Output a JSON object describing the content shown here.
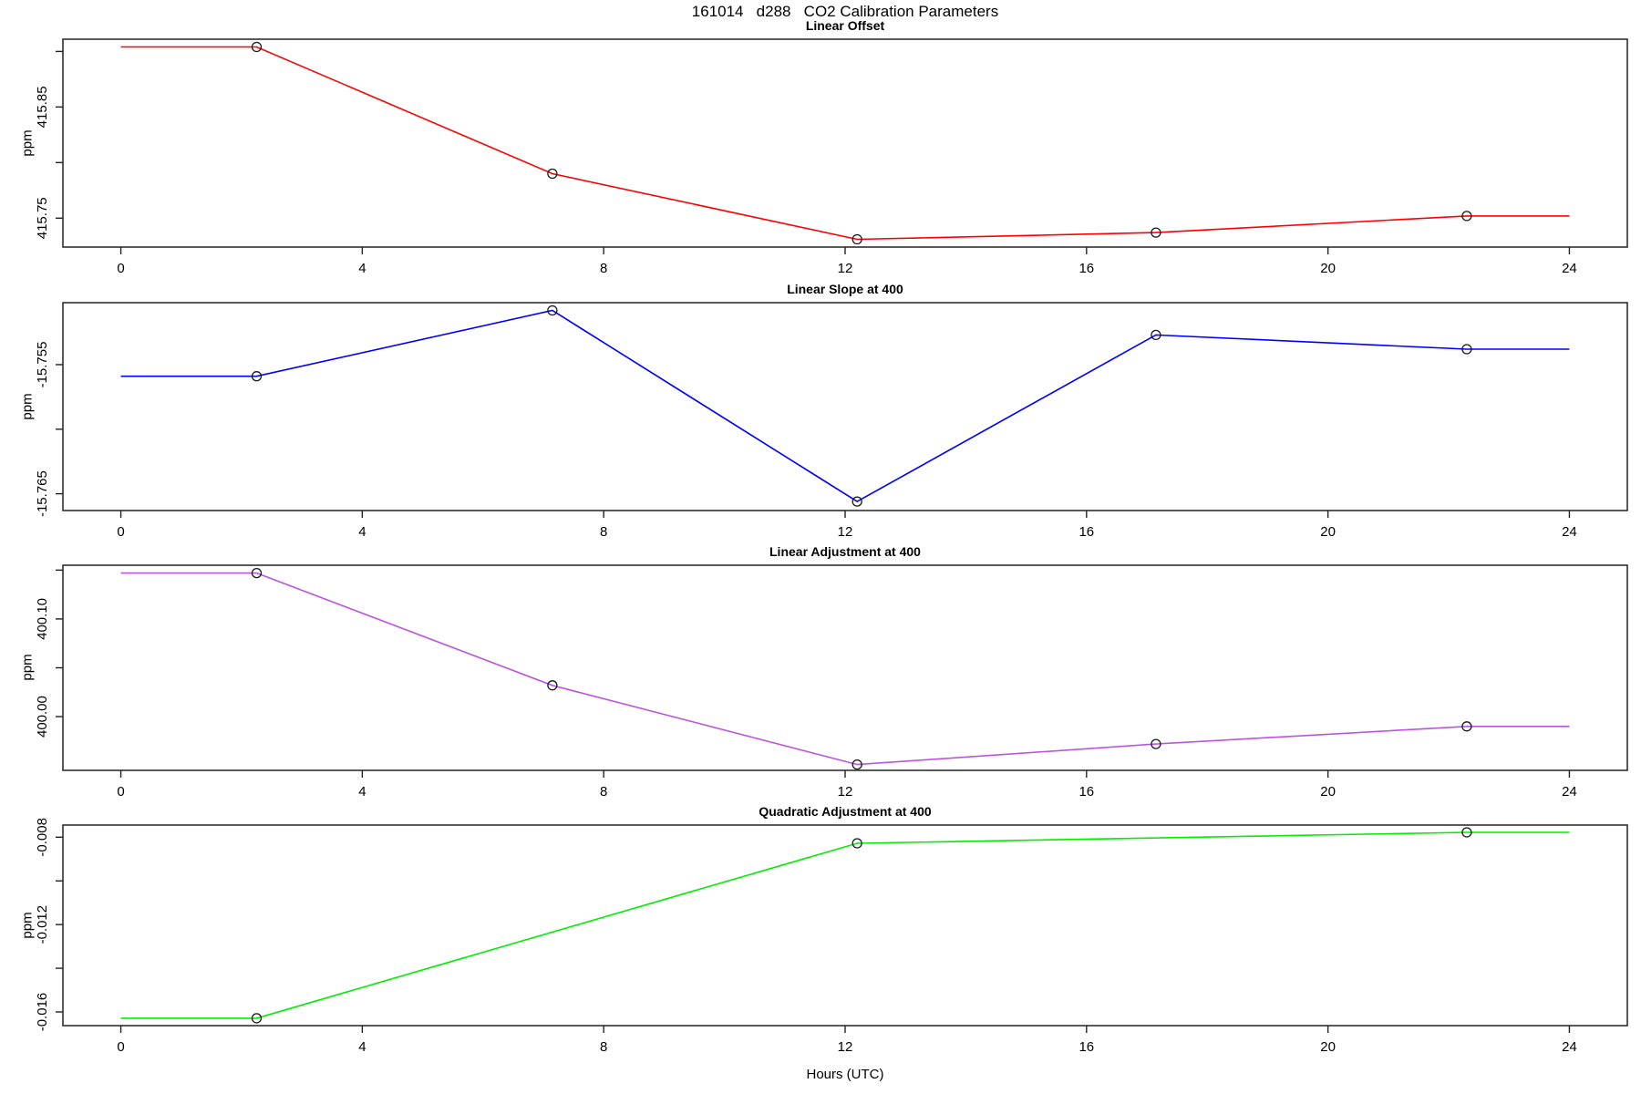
{
  "title": "161014   d288   CO2 Calibration Parameters",
  "xlabel": "Hours (UTC)",
  "chart_data": [
    {
      "type": "line",
      "title": "Linear Offset",
      "ylabel": "ppm",
      "color": "#FF0000",
      "marker": "open-circle",
      "grid": false,
      "x": [
        2.25,
        7.15,
        12.2,
        17.15,
        22.3
      ],
      "y": [
        415.904,
        415.79,
        415.731,
        415.737,
        415.752
      ],
      "line_span": [
        0,
        24
      ],
      "xlim": [
        -0.96,
        24.96
      ],
      "ylim": [
        415.724,
        415.911
      ],
      "xticks": [
        0,
        4,
        8,
        12,
        16,
        20,
        24
      ],
      "yticks": [
        415.75,
        415.8,
        415.85,
        415.9
      ],
      "ytick_labels": [
        "415.75",
        "",
        "415.85",
        ""
      ]
    },
    {
      "type": "line",
      "title": "Linear Slope at 400",
      "ylabel": "ppm",
      "color": "#0000FF",
      "marker": "open-circle",
      "grid": false,
      "x": [
        2.25,
        7.15,
        12.2,
        17.15,
        22.3
      ],
      "y": [
        -15.7559,
        -15.7508,
        -15.7656,
        -15.7527,
        -15.7538
      ],
      "line_span": [
        0,
        24
      ],
      "xlim": [
        -0.96,
        24.96
      ],
      "ylim": [
        -15.7663,
        -15.7502
      ],
      "xticks": [
        0,
        4,
        8,
        12,
        16,
        20,
        24
      ],
      "yticks": [
        -15.765,
        -15.76,
        -15.755
      ],
      "ytick_labels": [
        "-15.765",
        "",
        "-15.755"
      ]
    },
    {
      "type": "line",
      "title": "Linear Adjustment at 400",
      "ylabel": "ppm",
      "color": "#BB55E0",
      "marker": "open-circle",
      "grid": false,
      "x": [
        2.25,
        7.15,
        12.2,
        17.15,
        22.3
      ],
      "y": [
        400.147,
        400.032,
        399.951,
        399.972,
        399.99
      ],
      "line_span": [
        0,
        24
      ],
      "xlim": [
        -0.96,
        24.96
      ],
      "ylim": [
        399.945,
        400.155
      ],
      "xticks": [
        0,
        4,
        8,
        12,
        16,
        20,
        24
      ],
      "yticks": [
        400.0,
        400.05,
        400.1,
        400.15
      ],
      "ytick_labels": [
        "400.00",
        "",
        "400.10",
        ""
      ]
    },
    {
      "type": "line",
      "title": "Quadratic Adjustment at 400",
      "ylabel": "ppm",
      "color": "#00EE00",
      "marker": "open-circle",
      "grid": false,
      "x": [
        2.25,
        12.2,
        22.3
      ],
      "y": [
        -0.01629,
        -0.00828,
        -0.00778
      ],
      "line_span": [
        0,
        24
      ],
      "xlim": [
        -0.96,
        24.96
      ],
      "ylim": [
        -0.016626,
        -0.007445
      ],
      "xticks": [
        0,
        4,
        8,
        12,
        16,
        20,
        24
      ],
      "yticks": [
        -0.016,
        -0.014,
        -0.012,
        -0.01,
        -0.008
      ],
      "ytick_labels": [
        "-0.016",
        "",
        "-0.012",
        "",
        "-0.008"
      ]
    }
  ]
}
